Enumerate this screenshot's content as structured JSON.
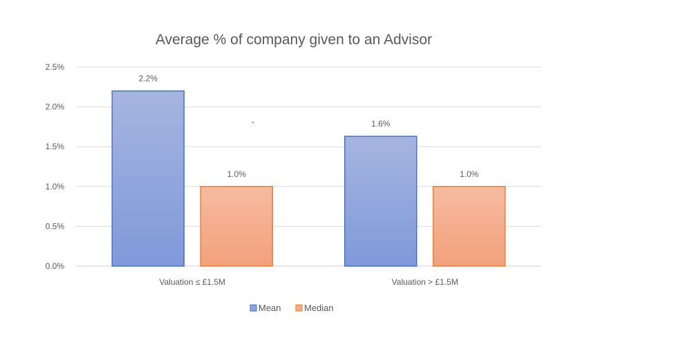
{
  "chart_data": {
    "type": "bar",
    "title": "Average % of company given to an Advisor",
    "categories": [
      "Valuation ≤ £1.5M",
      "Valuation > £1.5M"
    ],
    "series": [
      {
        "name": "Mean",
        "values": [
          2.2,
          1.63
        ],
        "labels": [
          "2.2%",
          "1.6%"
        ],
        "color": "#8FA3DC",
        "border": "#4472C4"
      },
      {
        "name": "Median",
        "values": [
          1.0,
          1.0
        ],
        "labels": [
          "1.0%",
          "1.0%"
        ],
        "color": "#F4AC8C",
        "border": "#ED7D31"
      }
    ],
    "ylim": [
      0,
      2.5
    ],
    "yticks": [
      0,
      0.5,
      1.0,
      1.5,
      2.0,
      2.5
    ],
    "ytick_labels": [
      "0.0%",
      "0.5%",
      "1.0%",
      "1.5%",
      "2.0%",
      "2.5%"
    ],
    "xlabel": "",
    "ylabel": "",
    "grid": true,
    "legend_position": "bottom"
  }
}
